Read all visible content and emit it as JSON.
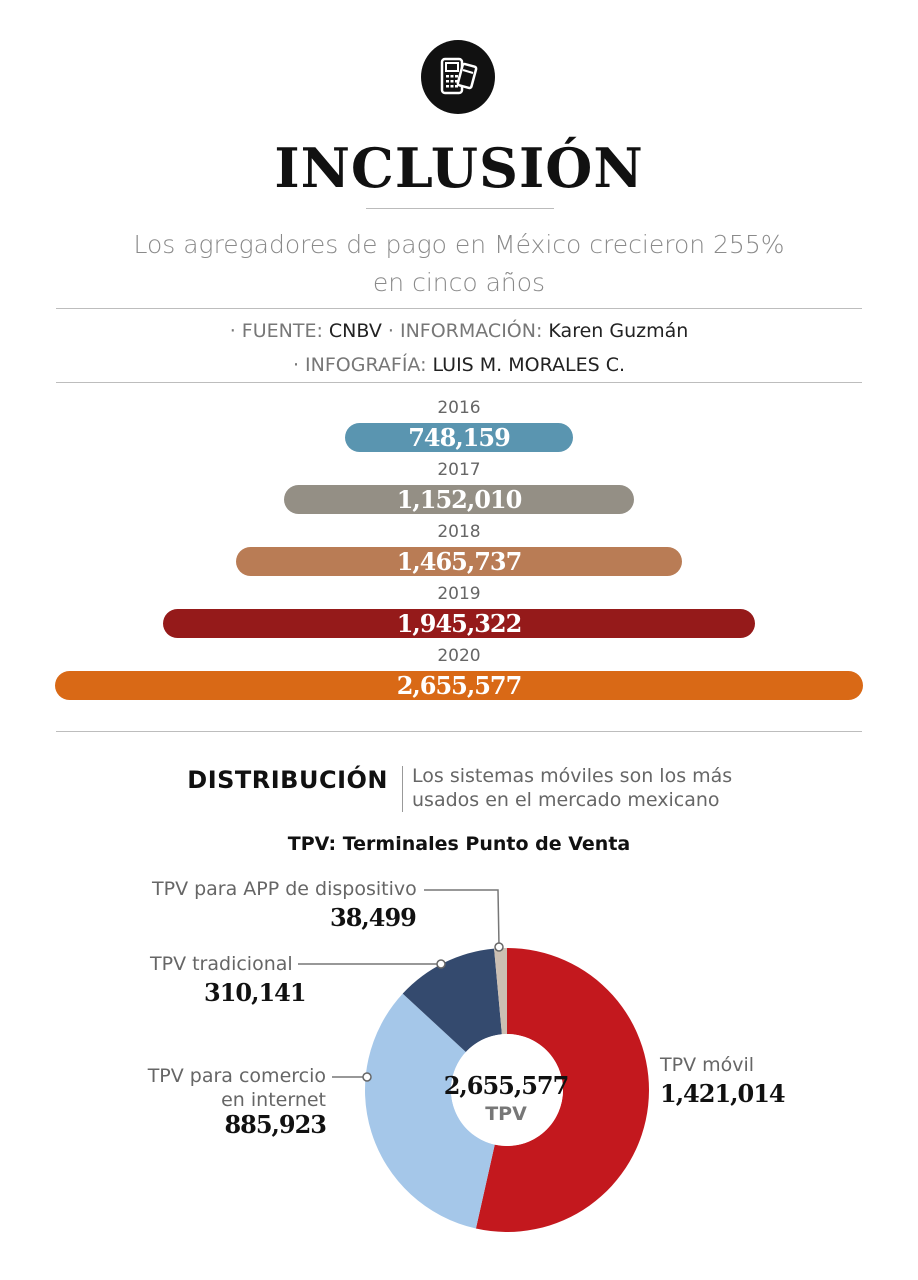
{
  "header": {
    "icon": "pos-terminal-icon",
    "title": "INCLUSIÓN",
    "subtitle_line1": "Los agregadores de pago en México crecieron 255%",
    "subtitle_line2": "en cinco años"
  },
  "credits": {
    "fuente_label": "· FUENTE:",
    "fuente_value": "CNBV",
    "info_label": "· INFORMACIÓN:",
    "info_value": "Karen Guzmán",
    "infografia_label": "· INFOGRAFÍA:",
    "infografia_value": "LUIS M. MORALES C."
  },
  "section": {
    "title": "DISTRIBUCIÓN",
    "description_line1": "Los sistemas móviles son los más",
    "description_line2": "usados en el mercado mexicano",
    "chart_subtitle": "TPV: Terminales Punto de Venta"
  },
  "chart_data": [
    {
      "type": "bar",
      "orientation": "horizontal-centered",
      "categories": [
        "2016",
        "2017",
        "2018",
        "2019",
        "2020"
      ],
      "values": [
        748159,
        1152010,
        1465737,
        1945322,
        2655577
      ],
      "value_labels": [
        "748,159",
        "1,152,010",
        "1,465,737",
        "1,945,322",
        "2,655,577"
      ],
      "colors": [
        "#5a95b0",
        "#948f85",
        "#b97c55",
        "#951a1a",
        "#d96916"
      ]
    },
    {
      "type": "pie",
      "style": "donut",
      "center_value": "2,655,577",
      "center_label": "TPV",
      "slices": [
        {
          "label": "TPV móvil",
          "value": 1421014,
          "value_label": "1,421,014",
          "color": "#c3181e"
        },
        {
          "label_line1": "TPV para comercio",
          "label_line2": "en internet",
          "value": 885923,
          "value_label": "885,923",
          "color": "#a5c7e9"
        },
        {
          "label": "TPV tradicional",
          "value": 310141,
          "value_label": "310,141",
          "color": "#344a6e"
        },
        {
          "label": "TPV para APP de dispositivo",
          "value": 38499,
          "value_label": "38,499",
          "color": "#cbbfb3"
        }
      ]
    }
  ]
}
